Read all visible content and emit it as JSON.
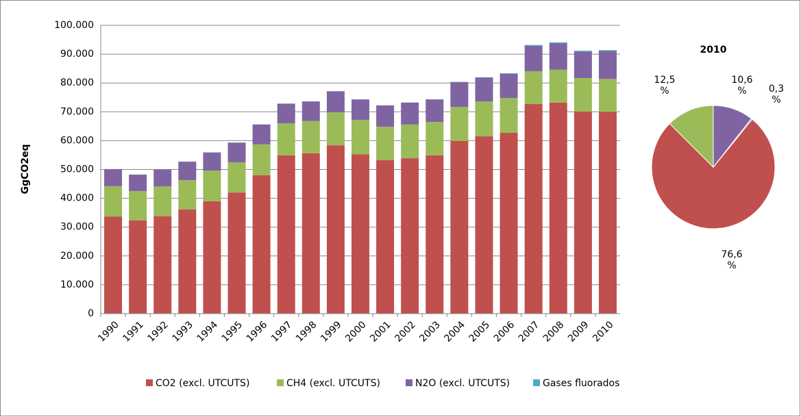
{
  "chart_data": [
    {
      "type": "stacked_bar",
      "y_axis_label": "GgCO2eq",
      "categories": [
        "1990",
        "1991",
        "1992",
        "1993",
        "1994",
        "1995",
        "1996",
        "1997",
        "1998",
        "1999",
        "2000",
        "2001",
        "2002",
        "2003",
        "2004",
        "2005",
        "2006",
        "2007",
        "2008",
        "2009",
        "2010"
      ],
      "series": [
        {
          "name": "CO2 (excl. UTCUTS)",
          "color": "#c0504d",
          "values": [
            33700,
            32300,
            33800,
            36100,
            39000,
            42000,
            48000,
            54900,
            55600,
            58400,
            55300,
            53200,
            53900,
            54900,
            59900,
            61500,
            62700,
            72700,
            73200,
            70100,
            70000
          ]
        },
        {
          "name": "CH4 (excl. UTCUTS)",
          "color": "#9bbb59",
          "values": [
            10500,
            10200,
            10300,
            10200,
            10600,
            10500,
            10700,
            11100,
            11200,
            11400,
            11900,
            11600,
            11700,
            11600,
            11800,
            12100,
            12100,
            11400,
            11400,
            11600,
            11400
          ]
        },
        {
          "name": "N2O (excl. UTCUTS)",
          "color": "#8064a2",
          "values": [
            5900,
            5700,
            5900,
            6400,
            6300,
            6800,
            6900,
            6800,
            6800,
            7300,
            7100,
            7400,
            7600,
            7800,
            8600,
            8300,
            8400,
            8800,
            9200,
            9200,
            9700
          ]
        },
        {
          "name": "Gases fluorados",
          "color": "#4bacc6",
          "values": [
            50,
            50,
            50,
            50,
            50,
            50,
            50,
            50,
            50,
            50,
            50,
            50,
            50,
            50,
            100,
            100,
            200,
            300,
            300,
            300,
            300
          ]
        }
      ],
      "ylim": [
        0,
        100000
      ],
      "yticks": [
        0,
        {
          "value": 10000,
          "label": "10.000"
        },
        {
          "value": 20000,
          "label": "20.000"
        },
        {
          "value": 30000,
          "label": "30.000"
        },
        {
          "value": 40000,
          "label": "40.000"
        },
        {
          "value": 50000,
          "label": "50.000"
        },
        {
          "value": 60000,
          "label": "60.000"
        },
        {
          "value": 70000,
          "label": "70.000"
        },
        {
          "value": 80000,
          "label": "80.000"
        },
        {
          "value": 90000,
          "label": "90.000"
        },
        {
          "value": 100000,
          "label": "100.000"
        }
      ],
      "grid": true,
      "legend": "bottom"
    },
    {
      "type": "pie",
      "title": "2010",
      "categories": [
        "CO2 (excl. UTCUTS)",
        "CH4 (excl. UTCUTS)",
        "N2O (excl. UTCUTS)",
        "Gases fluorados"
      ],
      "values": [
        76.6,
        12.5,
        10.6,
        0.3
      ],
      "value_labels": [
        "76,6 %",
        "12,5 %",
        "10,6 %",
        "0,3 %"
      ],
      "colors": [
        "#c0504d",
        "#9bbb59",
        "#8064a2",
        "#4bacc6"
      ]
    }
  ]
}
